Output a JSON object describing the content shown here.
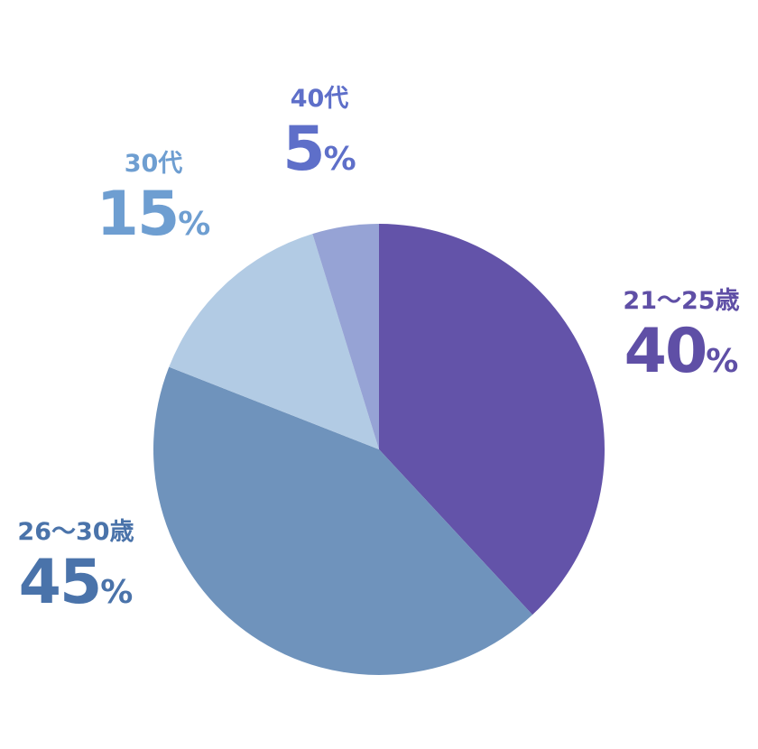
{
  "chart_data": {
    "type": "pie",
    "slices": [
      {
        "label": "21〜25歳",
        "value": 40,
        "unit": "%",
        "color": "#6353A9",
        "label_color": "#5F4FA6"
      },
      {
        "label": "26〜30歳",
        "value": 45,
        "unit": "%",
        "color": "#6F93BC",
        "label_color": "#4A73AA"
      },
      {
        "label": "30代",
        "value": 15,
        "unit": "%",
        "color": "#B2CBE4",
        "label_color": "#6E9ED1"
      },
      {
        "label": "40代",
        "value": 5,
        "unit": "%",
        "color": "#96A3D5",
        "label_color": "#5E6FC9"
      }
    ],
    "start": "12 o'clock",
    "direction": "clockwise"
  }
}
